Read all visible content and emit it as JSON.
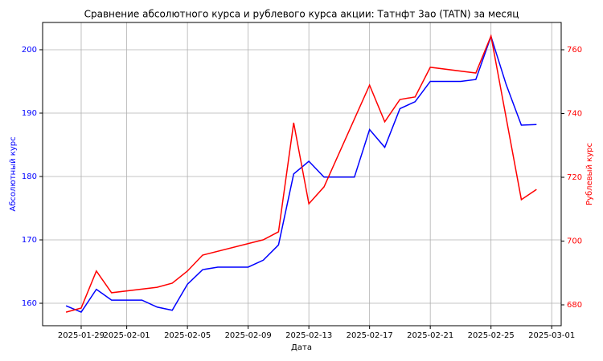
{
  "chart_data": {
    "type": "line",
    "title": "Сравнение абсолютного курса и рублевого курса акции: Татнфт 3ао (TATN) за месяц",
    "x_label": "Дата",
    "y_label": "Абсолютный курс",
    "y2_label": "Рублевый курс",
    "xlim": [
      "2025-01-26T11:00",
      "2025-03-01T15:00"
    ],
    "xticks": [
      "2025-01-29",
      "2025-02-01",
      "2025-02-05",
      "2025-02-09",
      "2025-02-13",
      "2025-02-17",
      "2025-02-21",
      "2025-02-25",
      "2025-03-01"
    ],
    "ylim": [
      156.46,
      204.3
    ],
    "yticks": [
      160,
      170,
      180,
      190,
      200
    ],
    "y2lim": [
      673.46,
      768.55
    ],
    "y2ticks": [
      680,
      700,
      720,
      740,
      760
    ],
    "grid": true,
    "series": [
      {
        "name": "Абсолютный курс",
        "color": "#0000ff",
        "axis": "y",
        "x": [
          "2025-01-28",
          "2025-01-29",
          "2025-01-30",
          "2025-01-31",
          "2025-02-02",
          "2025-02-03",
          "2025-02-04",
          "2025-02-05",
          "2025-02-06",
          "2025-02-07",
          "2025-02-09",
          "2025-02-10",
          "2025-02-11",
          "2025-02-12",
          "2025-02-13",
          "2025-02-14",
          "2025-02-16",
          "2025-02-17",
          "2025-02-18",
          "2025-02-19",
          "2025-02-20",
          "2025-02-21",
          "2025-02-23",
          "2025-02-24",
          "2025-02-25",
          "2025-02-26",
          "2025-02-27",
          "2025-02-28"
        ],
        "values": [
          159.6,
          158.6,
          162.2,
          160.5,
          160.5,
          159.4,
          158.9,
          163.0,
          165.3,
          165.7,
          165.7,
          166.8,
          169.2,
          180.4,
          182.4,
          179.9,
          179.9,
          187.4,
          184.6,
          190.7,
          191.8,
          195.0,
          195.0,
          195.3,
          202.1,
          194.5,
          188.1,
          188.2
        ]
      },
      {
        "name": "Рублевый курс",
        "color": "#ff0000",
        "axis": "y2",
        "x": [
          "2025-01-28",
          "2025-01-29",
          "2025-01-30",
          "2025-01-31",
          "2025-02-03",
          "2025-02-04",
          "2025-02-05",
          "2025-02-06",
          "2025-02-10",
          "2025-02-11",
          "2025-02-12",
          "2025-02-13",
          "2025-02-14",
          "2025-02-17",
          "2025-02-18",
          "2025-02-19",
          "2025-02-20",
          "2025-02-21",
          "2025-02-24",
          "2025-02-25",
          "2025-02-27",
          "2025-02-28"
        ],
        "values": [
          677.7,
          679.0,
          690.6,
          683.8,
          685.5,
          686.8,
          690.6,
          695.6,
          700.4,
          702.9,
          737.1,
          711.7,
          717.0,
          748.9,
          737.4,
          744.4,
          745.2,
          754.5,
          752.7,
          764.3,
          713.0,
          716.2
        ]
      }
    ]
  }
}
